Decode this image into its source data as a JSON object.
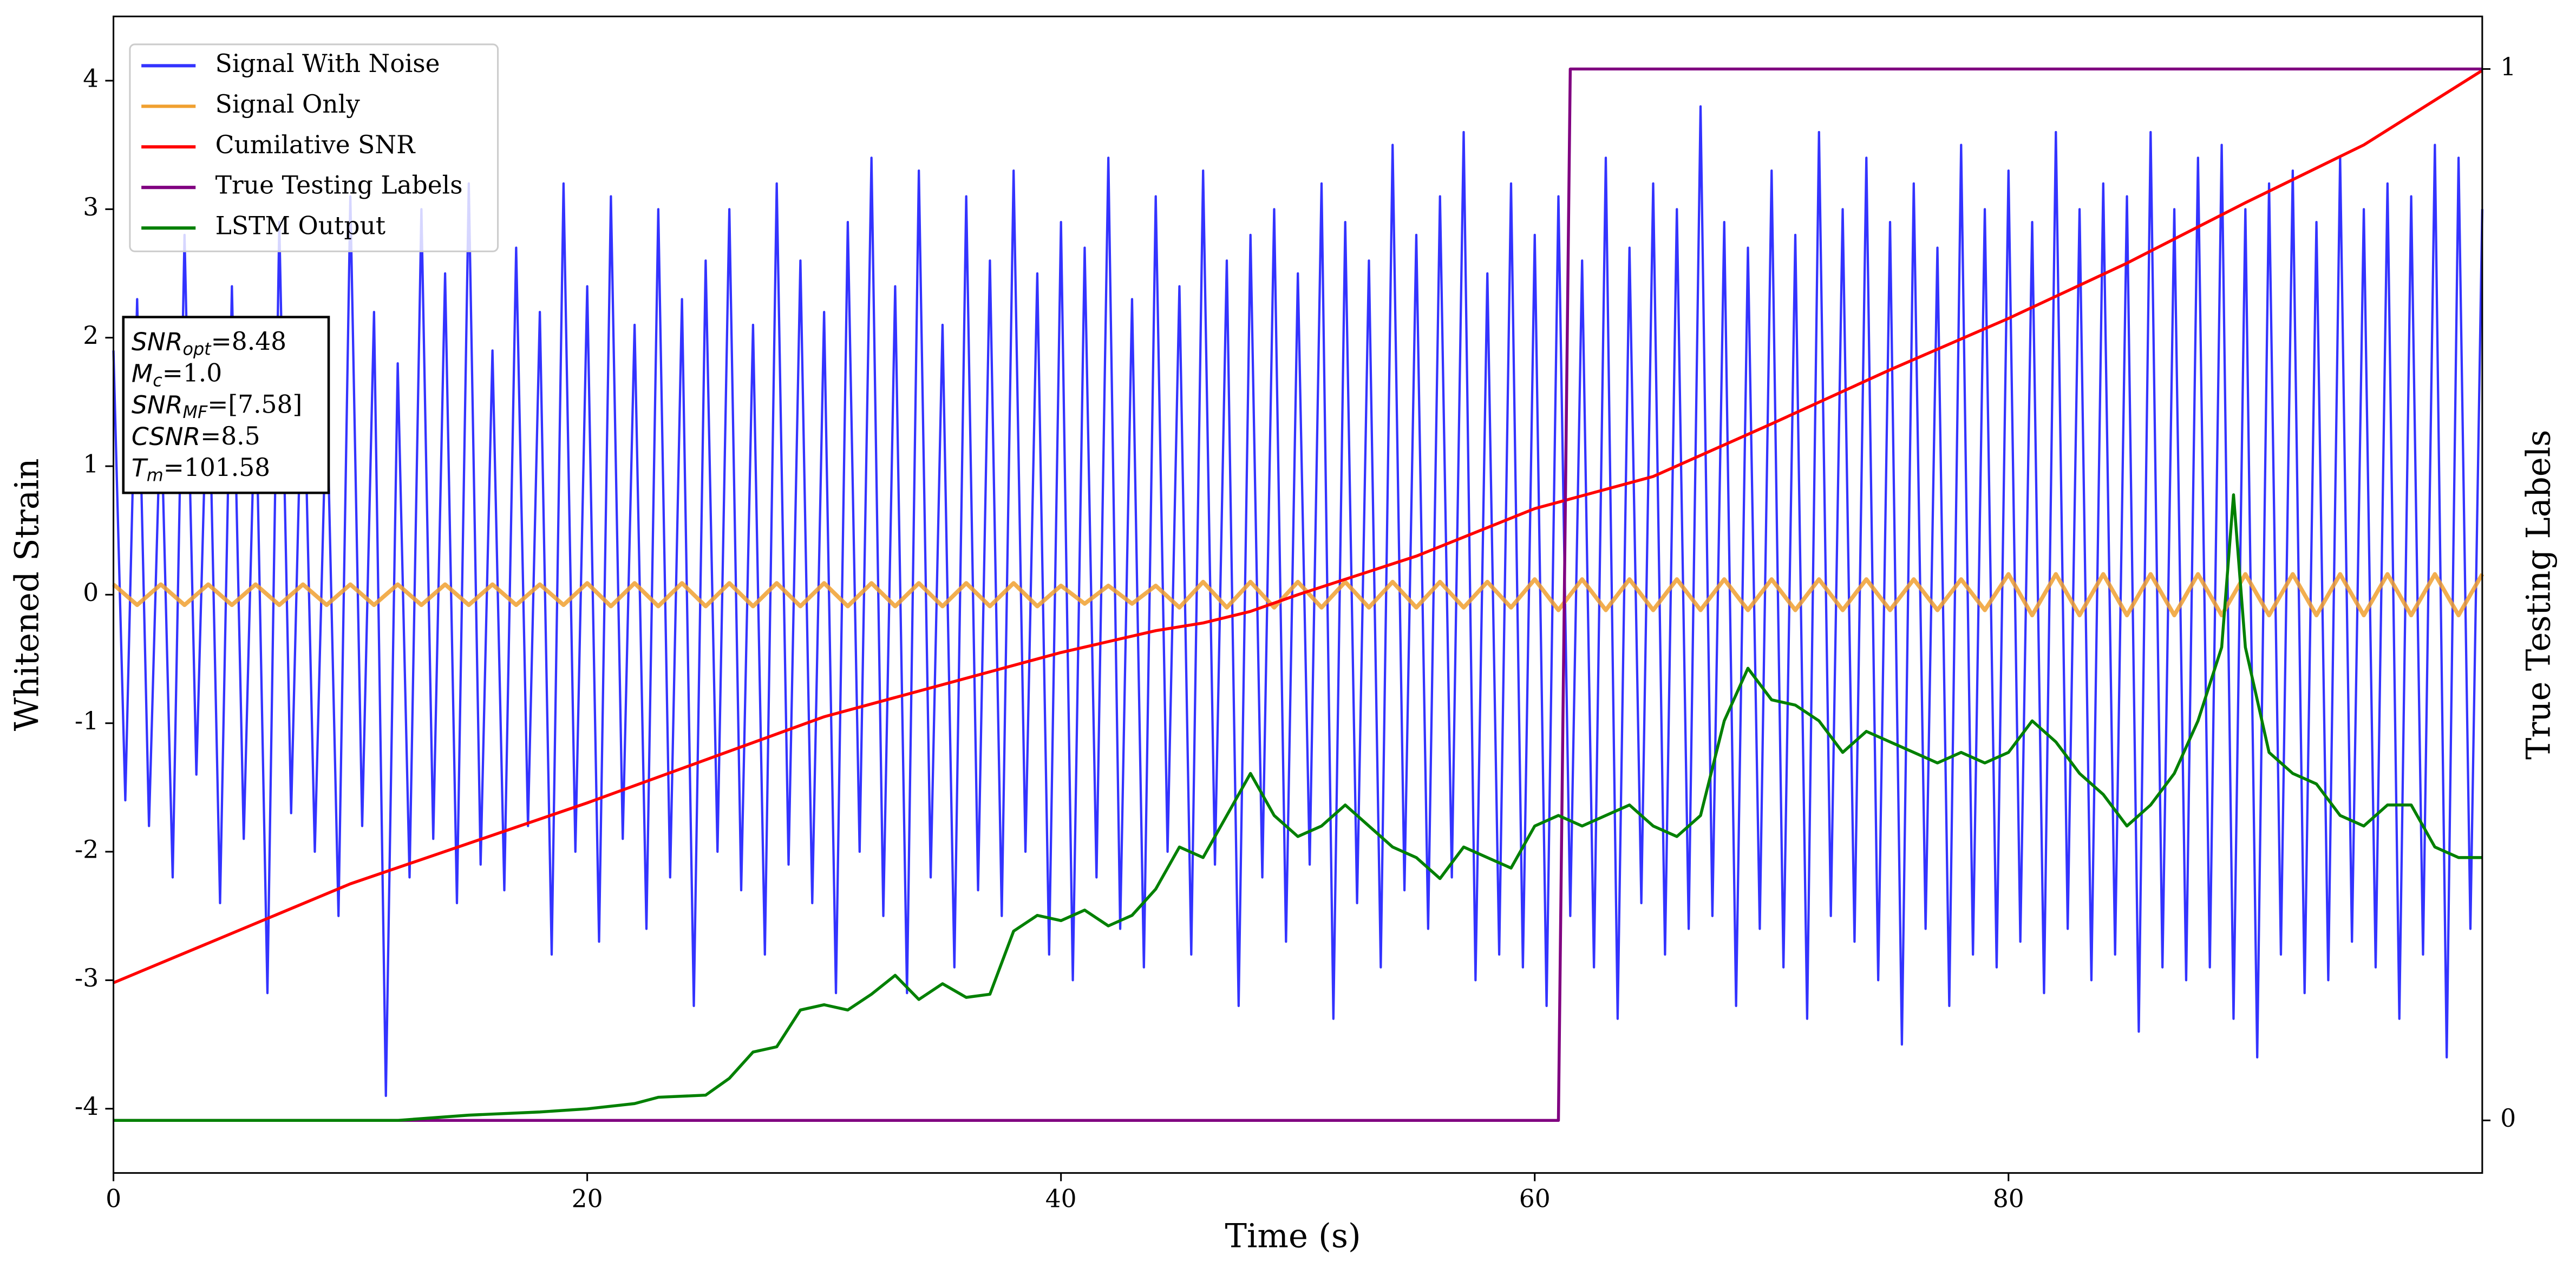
{
  "chart_data": {
    "type": "line",
    "xlabel": "Time (s)",
    "ylabel": "Whitened Strain",
    "y2label": "True Testing Labels",
    "xlim": [
      0,
      100
    ],
    "xticks": [
      0,
      20,
      40,
      60,
      80
    ],
    "ylim": [
      -4.5,
      4.5
    ],
    "yticks": [
      -4,
      -3,
      -2,
      -1,
      0,
      1,
      2,
      3,
      4
    ],
    "y2lim": [
      -0.05,
      1.05
    ],
    "y2ticks": [
      0,
      1
    ],
    "grid": false,
    "legend": "upper left",
    "annotation": [
      {
        "main": "SNR",
        "sub": "opt",
        "rest": "=8.48"
      },
      {
        "main": "M",
        "sub": "c",
        "rest": "=1.0"
      },
      {
        "main": "SNR",
        "sub": "MF",
        "rest": "=[7.58]"
      },
      {
        "main": "CSNR",
        "rest": "=8.5"
      },
      {
        "main": "T",
        "sub": "m",
        "rest": "=101.58"
      }
    ],
    "series": [
      {
        "name": "Signal With Noise",
        "color": "#3333ff",
        "x": [
          0,
          0.5,
          1,
          1.5,
          2,
          2.5,
          3,
          3.5,
          4,
          4.5,
          5,
          5.5,
          6,
          6.5,
          7,
          7.5,
          8,
          8.5,
          9,
          9.5,
          10,
          10.5,
          11,
          11.5,
          12,
          12.5,
          13,
          13.5,
          14,
          14.5,
          15,
          15.5,
          16,
          16.5,
          17,
          17.5,
          18,
          18.5,
          19,
          19.5,
          20,
          20.5,
          21,
          21.5,
          22,
          22.5,
          23,
          23.5,
          24,
          24.5,
          25,
          25.5,
          26,
          26.5,
          27,
          27.5,
          28,
          28.5,
          29,
          29.5,
          30,
          30.5,
          31,
          31.5,
          32,
          32.5,
          33,
          33.5,
          34,
          34.5,
          35,
          35.5,
          36,
          36.5,
          37,
          37.5,
          38,
          38.5,
          39,
          39.5,
          40,
          40.5,
          41,
          41.5,
          42,
          42.5,
          43,
          43.5,
          44,
          44.5,
          45,
          45.5,
          46,
          46.5,
          47,
          47.5,
          48,
          48.5,
          49,
          49.5,
          50,
          50.5,
          51,
          51.5,
          52,
          52.5,
          53,
          53.5,
          54,
          54.5,
          55,
          55.5,
          56,
          56.5,
          57,
          57.5,
          58,
          58.5,
          59,
          59.5,
          60,
          60.5,
          61,
          61.5,
          62,
          62.5,
          63,
          63.5,
          64,
          64.5,
          65,
          65.5,
          66,
          66.5,
          67,
          67.5,
          68,
          68.5,
          69,
          69.5,
          70,
          70.5,
          71,
          71.5,
          72,
          72.5,
          73,
          73.5,
          74,
          74.5,
          75,
          75.5,
          76,
          76.5,
          77,
          77.5,
          78,
          78.5,
          79,
          79.5,
          80,
          80.5,
          81,
          81.5,
          82,
          82.5,
          83,
          83.5,
          84,
          84.5,
          85,
          85.5,
          86,
          86.5,
          87,
          87.5,
          88,
          88.5,
          89,
          89.5,
          90,
          90.5,
          91,
          91.5,
          92,
          92.5,
          93,
          93.5,
          94,
          94.5,
          95,
          95.5,
          96,
          96.5,
          97,
          97.5,
          98,
          98.5,
          99,
          99.5,
          100
        ],
        "values": [
          1.9,
          -1.6,
          2.3,
          -1.8,
          1.5,
          -2.2,
          2.8,
          -1.4,
          2.0,
          -2.4,
          2.4,
          -1.9,
          1.7,
          -3.1,
          2.9,
          -1.7,
          2.1,
          -2.0,
          1.6,
          -2.5,
          3.1,
          -1.8,
          2.2,
          -3.9,
          1.8,
          -2.2,
          3.0,
          -1.9,
          2.5,
          -2.4,
          3.2,
          -2.1,
          1.9,
          -2.3,
          2.7,
          -1.8,
          2.2,
          -2.8,
          3.2,
          -2.0,
          2.4,
          -2.7,
          3.1,
          -1.9,
          2.1,
          -2.6,
          3.0,
          -2.2,
          2.3,
          -3.2,
          2.6,
          -2.0,
          3.0,
          -2.3,
          2.1,
          -2.8,
          3.2,
          -2.1,
          2.6,
          -2.4,
          2.2,
          -3.1,
          2.9,
          -2.0,
          3.4,
          -2.5,
          2.4,
          -3.1,
          3.3,
          -2.2,
          2.1,
          -2.9,
          3.1,
          -2.3,
          2.6,
          -2.5,
          3.3,
          -2.0,
          2.5,
          -2.8,
          2.9,
          -3.0,
          2.7,
          -2.2,
          3.4,
          -2.6,
          2.3,
          -2.9,
          3.1,
          -2.0,
          2.4,
          -2.8,
          3.3,
          -2.1,
          2.6,
          -3.2,
          2.8,
          -2.2,
          3.0,
          -2.7,
          2.5,
          -2.1,
          3.2,
          -3.3,
          2.9,
          -2.4,
          2.6,
          -2.9,
          3.5,
          -2.3,
          2.8,
          -2.6,
          3.1,
          -2.2,
          3.6,
          -3.0,
          2.5,
          -2.8,
          3.2,
          -2.9,
          2.8,
          -3.2,
          3.1,
          -2.5,
          2.6,
          -2.9,
          3.4,
          -3.3,
          2.7,
          -2.4,
          3.2,
          -2.8,
          3.0,
          -2.6,
          3.8,
          -2.5,
          2.9,
          -3.2,
          2.7,
          -2.6,
          3.3,
          -2.9,
          2.8,
          -3.3,
          3.6,
          -2.5,
          3.0,
          -2.7,
          3.4,
          -3.0,
          2.9,
          -3.5,
          3.2,
          -2.6,
          2.7,
          -3.2,
          3.5,
          -2.8,
          3.0,
          -2.9,
          3.3,
          -2.7,
          2.9,
          -3.1,
          3.6,
          -2.6,
          3.0,
          -3.0,
          3.2,
          -2.8,
          3.1,
          -3.4,
          3.6,
          -2.9,
          3.0,
          -3.0,
          3.4,
          -2.9,
          3.5,
          -3.3,
          3.0,
          -3.6,
          3.2,
          -2.8,
          3.3,
          -3.1,
          2.9,
          -3.0,
          3.4,
          -2.7,
          3.0,
          -2.9,
          3.2,
          -3.3,
          3.1,
          -2.8,
          3.5,
          -3.6,
          3.4,
          -2.6,
          3.0
        ]
      },
      {
        "name": "Signal Only",
        "color": "#f0a030",
        "x": [
          0,
          1,
          2,
          3,
          4,
          5,
          6,
          7,
          8,
          9,
          10,
          11,
          12,
          13,
          14,
          15,
          16,
          17,
          18,
          19,
          20,
          21,
          22,
          23,
          24,
          25,
          26,
          27,
          28,
          29,
          30,
          31,
          32,
          33,
          34,
          35,
          36,
          37,
          38,
          39,
          40,
          41,
          42,
          43,
          44,
          45,
          46,
          47,
          48,
          49,
          50,
          51,
          52,
          53,
          54,
          55,
          56,
          57,
          58,
          59,
          60,
          61,
          62,
          63,
          64,
          65,
          66,
          67,
          68,
          69,
          70,
          71,
          72,
          73,
          74,
          75,
          76,
          77,
          78,
          79,
          80,
          81,
          82,
          83,
          84,
          85,
          86,
          87,
          88,
          89,
          90,
          91,
          92,
          93,
          94,
          95,
          96,
          97,
          98,
          99,
          100
        ],
        "values": [
          0.08,
          -0.08,
          0.08,
          -0.08,
          0.08,
          -0.08,
          0.08,
          -0.08,
          0.08,
          -0.08,
          0.08,
          -0.08,
          0.08,
          -0.08,
          0.08,
          -0.08,
          0.08,
          -0.08,
          0.08,
          -0.08,
          0.09,
          -0.09,
          0.09,
          -0.09,
          0.09,
          -0.09,
          0.09,
          -0.09,
          0.09,
          -0.09,
          0.09,
          -0.09,
          0.09,
          -0.09,
          0.09,
          -0.09,
          0.09,
          -0.09,
          0.09,
          -0.09,
          0.07,
          -0.07,
          0.07,
          -0.07,
          0.07,
          -0.1,
          0.1,
          -0.1,
          0.1,
          -0.1,
          0.1,
          -0.1,
          0.1,
          -0.1,
          0.1,
          -0.1,
          0.1,
          -0.1,
          0.1,
          -0.1,
          0.12,
          -0.12,
          0.12,
          -0.12,
          0.12,
          -0.12,
          0.12,
          -0.12,
          0.12,
          -0.12,
          0.12,
          -0.12,
          0.12,
          -0.12,
          0.12,
          -0.12,
          0.12,
          -0.12,
          0.12,
          -0.12,
          0.16,
          -0.16,
          0.16,
          -0.16,
          0.16,
          -0.16,
          0.16,
          -0.16,
          0.16,
          -0.16,
          0.16,
          -0.16,
          0.16,
          -0.16,
          0.16,
          -0.16,
          0.16,
          -0.16,
          0.16,
          -0.16,
          0.16
        ]
      },
      {
        "name": "Cumilative SNR",
        "color": "#ff0000",
        "x": [
          0,
          10,
          20,
          30,
          40,
          44,
          46,
          48,
          50,
          55,
          60,
          65,
          70,
          75,
          80,
          85,
          90,
          95,
          100
        ],
        "values": [
          -3.02,
          -2.25,
          -1.62,
          -0.95,
          -0.45,
          -0.28,
          -0.22,
          -0.13,
          0.0,
          0.3,
          0.67,
          0.92,
          1.33,
          1.75,
          2.15,
          2.58,
          3.05,
          3.5,
          4.08
        ]
      },
      {
        "name": "True Testing Labels",
        "color": "#800080",
        "axis": "y2",
        "x": [
          0,
          61,
          61.5,
          100
        ],
        "values": [
          0,
          0,
          1,
          1
        ]
      },
      {
        "name": "LSTM Output",
        "color": "#008000",
        "axis": "y2",
        "x": [
          0,
          12,
          15,
          18,
          20,
          22,
          23,
          25,
          26,
          27,
          28,
          29,
          30,
          31,
          32,
          33,
          34,
          35,
          36,
          37,
          38,
          39,
          40,
          41,
          42,
          43,
          44,
          45,
          46,
          47,
          48,
          49,
          50,
          51,
          52,
          53,
          54,
          55,
          56,
          57,
          58,
          59,
          60,
          61,
          62,
          63,
          64,
          65,
          66,
          67,
          68,
          69,
          70,
          71,
          72,
          73,
          74,
          75,
          76,
          77,
          78,
          79,
          80,
          81,
          82,
          83,
          84,
          85,
          86,
          87,
          88,
          89,
          89.5,
          90,
          91,
          92,
          93,
          94,
          95,
          96,
          97,
          98,
          99,
          100
        ],
        "values": [
          0,
          0,
          0.005,
          0.008,
          0.011,
          0.016,
          0.022,
          0.024,
          0.04,
          0.065,
          0.07,
          0.105,
          0.11,
          0.105,
          0.12,
          0.138,
          0.115,
          0.13,
          0.117,
          0.12,
          0.18,
          0.195,
          0.19,
          0.2,
          0.185,
          0.195,
          0.22,
          0.26,
          0.25,
          0.29,
          0.33,
          0.29,
          0.27,
          0.28,
          0.3,
          0.28,
          0.26,
          0.25,
          0.23,
          0.26,
          0.25,
          0.24,
          0.28,
          0.29,
          0.28,
          0.29,
          0.3,
          0.28,
          0.27,
          0.29,
          0.38,
          0.43,
          0.4,
          0.395,
          0.38,
          0.35,
          0.37,
          0.36,
          0.35,
          0.34,
          0.35,
          0.34,
          0.35,
          0.38,
          0.36,
          0.33,
          0.31,
          0.28,
          0.3,
          0.33,
          0.38,
          0.45,
          0.595,
          0.45,
          0.35,
          0.33,
          0.32,
          0.29,
          0.28,
          0.3,
          0.3,
          0.26,
          0.25,
          0.25
        ]
      }
    ]
  }
}
